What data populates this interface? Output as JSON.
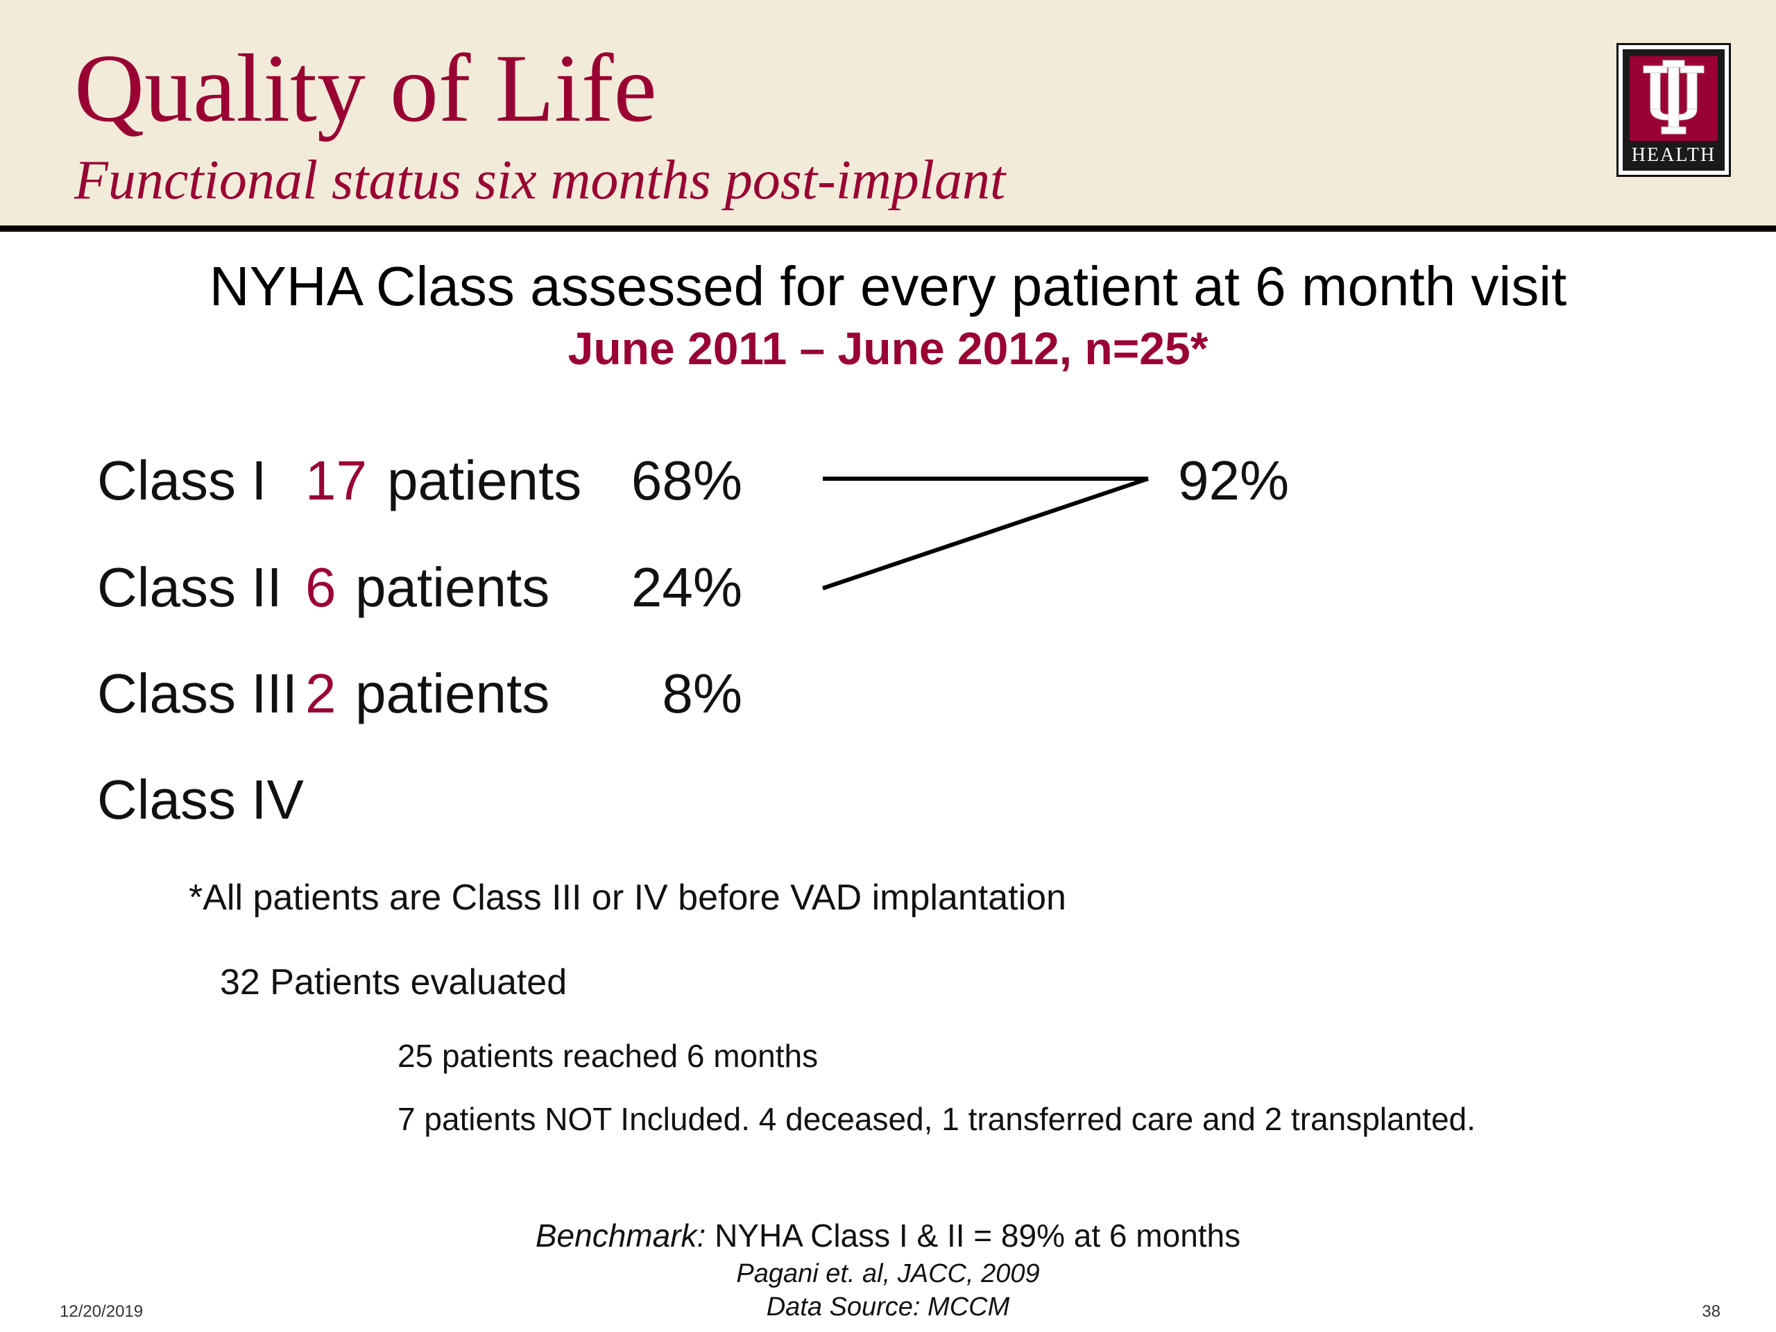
{
  "header": {
    "title": "Quality of Life",
    "subtitle": "Functional status six months post-implant",
    "logo_text": "HEALTH"
  },
  "headline": "NYHA Class assessed for every patient at 6 month visit",
  "subheadline": "June 2011 – June 2012, n=25*",
  "classes": [
    {
      "label": "Class I",
      "count": "17",
      "patients": "patients",
      "percent": "68%"
    },
    {
      "label": "Class II",
      "count": "6",
      "patients": "patients",
      "percent": "24%"
    },
    {
      "label": "Class III",
      "count": "2",
      "patients": "patients",
      "percent": "8%"
    },
    {
      "label": "Class IV"
    }
  ],
  "combined_percent": "92%",
  "notes": {
    "asterisk": "*All patients are Class III or IV before VAD implantation",
    "evaluated": "32 Patients evaluated",
    "reached": "25 patients reached 6 months",
    "excluded": "7 patients NOT Included.  4 deceased, 1 transferred care and 2 transplanted."
  },
  "benchmark": {
    "label": "Benchmark:",
    "text": " NYHA Class I & II = 89% at 6 months",
    "citation": "Pagani et. al, JACC, 2009",
    "source": "Data Source: MCCM"
  },
  "footer": {
    "date": "12/20/2019",
    "page": "38"
  },
  "colors": {
    "accent": "#990033",
    "header_bg": "#f2ebd9"
  }
}
